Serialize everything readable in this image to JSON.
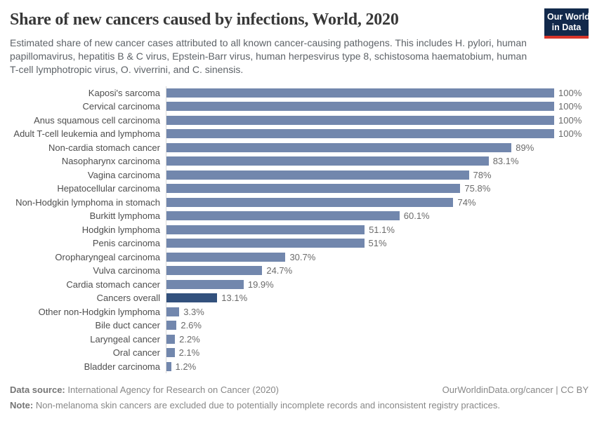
{
  "header": {
    "title": "Share of new cancers caused by infections, World, 2020",
    "subtitle": "Estimated share of new cancer cases attributed to all known cancer-causing pathogens. This includes H. pylori, human papillomavirus, hepatitis B & C virus, Epstein-Barr virus, human herpesvirus type 8, schistosoma haematobium, human T-cell lymphotropic virus, O. viverrini, and C. sinensis.",
    "logo": {
      "line1": "Our World",
      "line2": "in Data",
      "bg_color": "#12294b",
      "stripe_color": "#d7352a"
    }
  },
  "chart_data": {
    "type": "bar",
    "orientation": "horizontal",
    "title": "Share of new cancers caused by infections, World, 2020",
    "categories": [
      "Kaposi's sarcoma",
      "Cervical carcinoma",
      "Anus squamous cell carcinoma",
      "Adult T-cell leukemia and lymphoma",
      "Non-cardia stomach cancer",
      "Nasopharynx carcinoma",
      "Vagina carcinoma",
      "Hepatocellular carcinoma",
      "Non-Hodgkin lymphoma in stomach",
      "Burkitt lymphoma",
      "Hodgkin lymphoma",
      "Penis carcinoma",
      "Oropharyngeal carcinoma",
      "Vulva carcinoma",
      "Cardia stomach cancer",
      "Cancers overall",
      "Other non-Hodgkin lymphoma",
      "Bile duct cancer",
      "Laryngeal cancer",
      "Oral cancer",
      "Bladder carcinoma"
    ],
    "values": [
      100,
      100,
      100,
      100,
      89,
      83.1,
      78,
      75.8,
      74,
      60.1,
      51.1,
      51,
      30.7,
      24.7,
      19.9,
      13.1,
      3.3,
      2.6,
      2.2,
      2.1,
      1.2
    ],
    "value_labels": [
      "100%",
      "100%",
      "100%",
      "100%",
      "89%",
      "83.1%",
      "78%",
      "75.8%",
      "74%",
      "60.1%",
      "51.1%",
      "51%",
      "30.7%",
      "24.7%",
      "19.9%",
      "13.1%",
      "3.3%",
      "2.6%",
      "2.2%",
      "2.1%",
      "1.2%"
    ],
    "xlim": [
      0,
      100
    ],
    "unit": "%",
    "grid": false,
    "legend_position": "none",
    "highlight_category": "Cancers overall",
    "bar_color": "#7287ad",
    "highlight_color": "#33517d",
    "axis_line_color": "#d9d9d9"
  },
  "footer": {
    "datasource_label": "Data source:",
    "datasource_text": " International Agency for Research on Cancer (2020)",
    "credit": "OurWorldinData.org/cancer | CC BY",
    "note_label": "Note:",
    "note_text": " Non-melanoma skin cancers are excluded due to potentially incomplete records and inconsistent registry practices."
  }
}
